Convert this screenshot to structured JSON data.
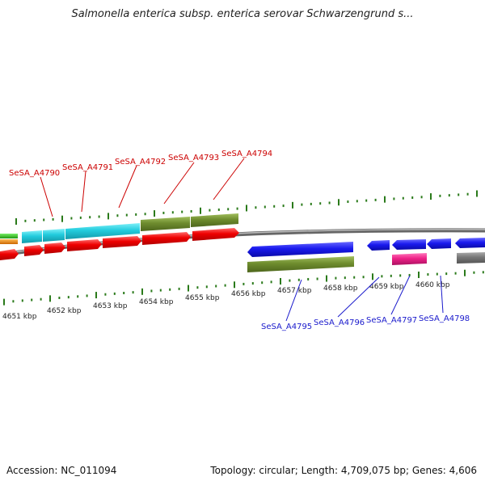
{
  "title": "Salmonella enterica subsp. enterica serovar Schwarzengrund s...",
  "footer": {
    "accession": "Accession: NC_011094",
    "summary": "Topology: circular; Length: 4,709,075 bp; Genes: 4,606"
  },
  "ruler_labels": [
    "4651 kbp",
    "4652 kbp",
    "4653 kbp",
    "4654 kbp",
    "4655 kbp",
    "4656 kbp",
    "4657 kbp",
    "4658 kbp",
    "4659 kbp",
    "4660 kbp"
  ],
  "upper_gene_labels": [
    "SeSA_A4790",
    "SeSA_A4791",
    "SeSA_A4792",
    "SeSA_A4793",
    "SeSA_A4794"
  ],
  "lower_gene_labels": [
    "SeSA_A4795",
    "SeSA_A4796",
    "SeSA_A4797",
    "SeSA_A4798"
  ],
  "colors": {
    "forward_label": "#cc0000",
    "reverse_label": "#1a1acc",
    "cds_red": "#ee0000",
    "cds_blue": "#1a1aee",
    "cyan": "#22ccdd",
    "olive": "#6e8c2e",
    "green": "#33bb22",
    "orange": "#ee8800",
    "pink": "#ee2288",
    "gray": "#777777",
    "tick": "#2a7a1a",
    "backbone": "#888888"
  }
}
